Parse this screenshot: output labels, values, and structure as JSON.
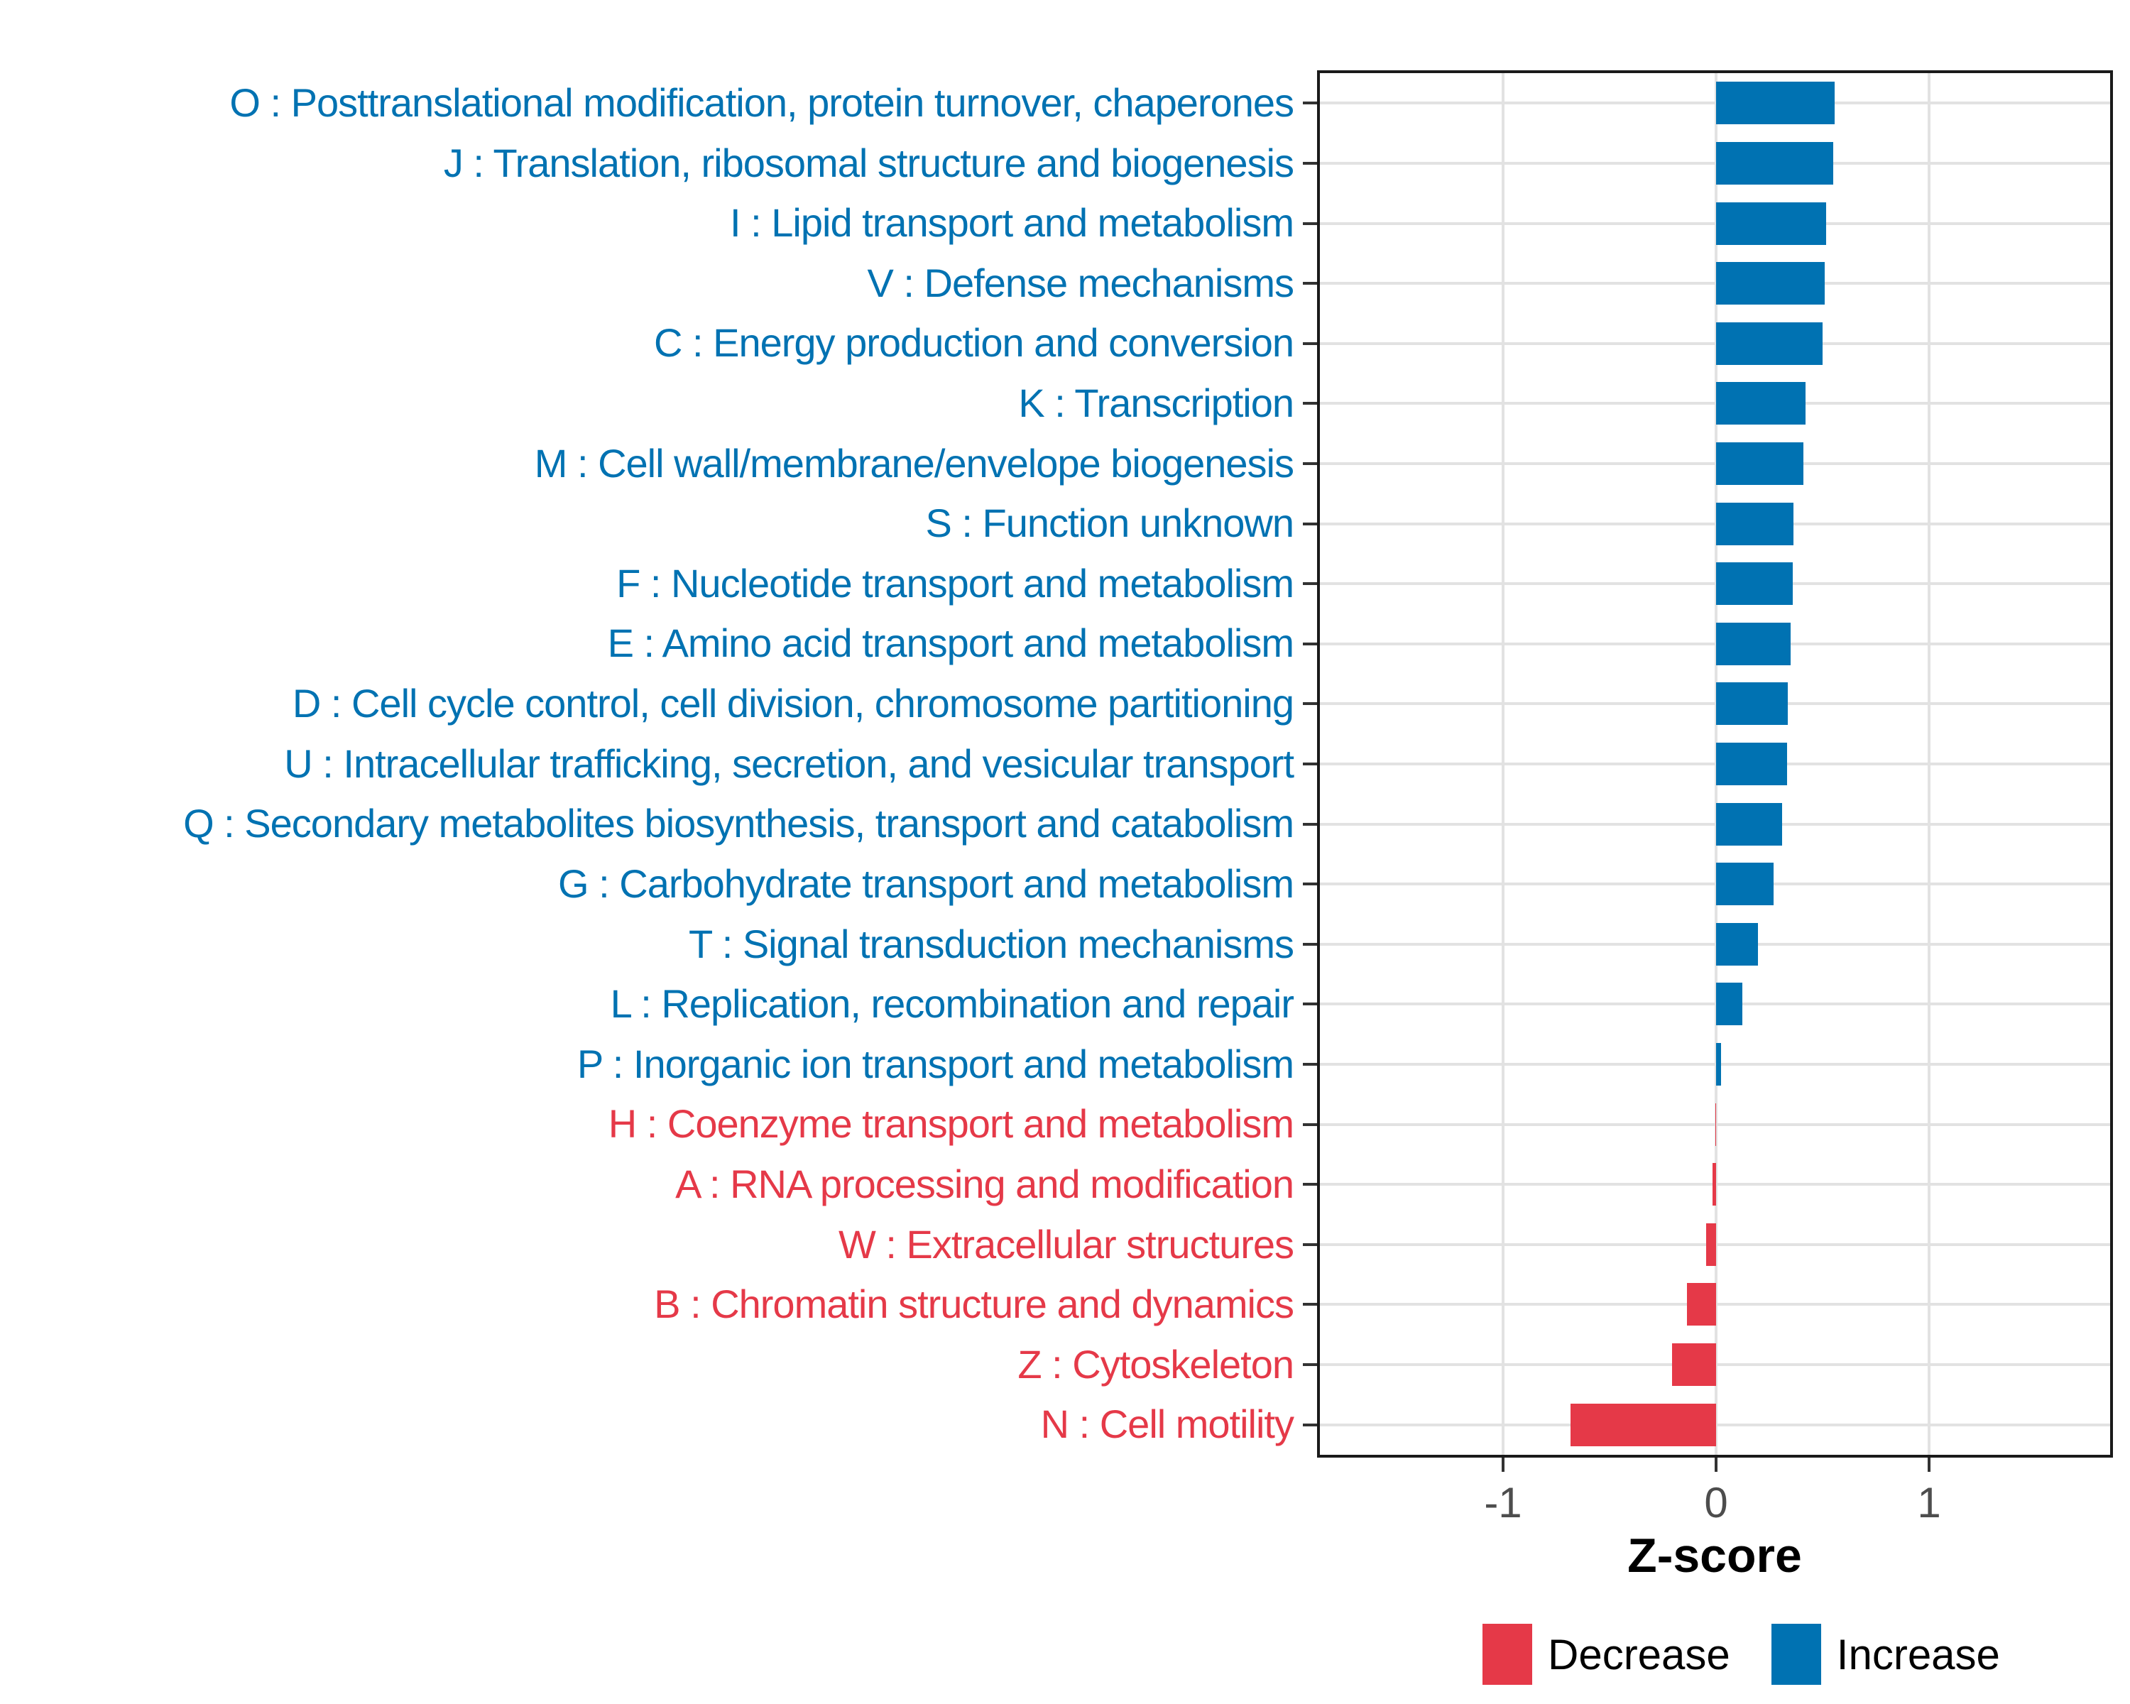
{
  "chart_data": {
    "type": "bar",
    "orientation": "horizontal-diverging",
    "title": "",
    "xlabel": "Z-score",
    "ylabel": "",
    "x_ticks": [
      -1,
      0,
      1
    ],
    "x_tick_labels": [
      "-1",
      "0",
      "1"
    ],
    "xlim": [
      -1.86,
      1.85
    ],
    "grid": "major-gridlines-on",
    "legend_position": "bottom-right",
    "legend": [
      {
        "label": "Decrease",
        "color": "#e53948"
      },
      {
        "label": "Increase",
        "color": "#0072b2"
      }
    ],
    "items": [
      {
        "code": "O",
        "label": "O : Posttranslational modification, protein turnover, chaperones",
        "value": 0.555,
        "direction": "Increase"
      },
      {
        "code": "J",
        "label": "J : Translation, ribosomal structure and biogenesis",
        "value": 0.55,
        "direction": "Increase"
      },
      {
        "code": "I",
        "label": "I : Lipid transport and metabolism",
        "value": 0.515,
        "direction": "Increase"
      },
      {
        "code": "V",
        "label": "V : Defense mechanisms",
        "value": 0.51,
        "direction": "Increase"
      },
      {
        "code": "C",
        "label": "C : Energy production and conversion",
        "value": 0.5,
        "direction": "Increase"
      },
      {
        "code": "K",
        "label": "K : Transcription",
        "value": 0.42,
        "direction": "Increase"
      },
      {
        "code": "M",
        "label": "M : Cell wall/membrane/envelope biogenesis",
        "value": 0.41,
        "direction": "Increase"
      },
      {
        "code": "S",
        "label": "S : Function unknown",
        "value": 0.363,
        "direction": "Increase"
      },
      {
        "code": "F",
        "label": "F : Nucleotide transport and metabolism",
        "value": 0.36,
        "direction": "Increase"
      },
      {
        "code": "E",
        "label": "E : Amino acid transport and metabolism",
        "value": 0.35,
        "direction": "Increase"
      },
      {
        "code": "D",
        "label": "D : Cell cycle control, cell division, chromosome partitioning",
        "value": 0.335,
        "direction": "Increase"
      },
      {
        "code": "U",
        "label": "U : Intracellular trafficking, secretion, and vesicular transport",
        "value": 0.333,
        "direction": "Increase"
      },
      {
        "code": "Q",
        "label": "Q : Secondary metabolites biosynthesis, transport and catabolism",
        "value": 0.31,
        "direction": "Increase"
      },
      {
        "code": "G",
        "label": "G : Carbohydrate transport and metabolism",
        "value": 0.27,
        "direction": "Increase"
      },
      {
        "code": "T",
        "label": "T : Signal transduction mechanisms",
        "value": 0.197,
        "direction": "Increase"
      },
      {
        "code": "L",
        "label": "L : Replication, recombination and repair",
        "value": 0.122,
        "direction": "Increase"
      },
      {
        "code": "P",
        "label": "P : Inorganic ion transport and metabolism",
        "value": 0.024,
        "direction": "Increase"
      },
      {
        "code": "H",
        "label": "H : Coenzyme transport and metabolism",
        "value": -0.004,
        "direction": "Decrease"
      },
      {
        "code": "A",
        "label": "A : RNA processing and modification",
        "value": -0.016,
        "direction": "Decrease"
      },
      {
        "code": "W",
        "label": "W : Extracellular structures",
        "value": -0.048,
        "direction": "Decrease"
      },
      {
        "code": "B",
        "label": "B : Chromatin structure and dynamics",
        "value": -0.138,
        "direction": "Decrease"
      },
      {
        "code": "Z",
        "label": "Z : Cytoskeleton",
        "value": -0.207,
        "direction": "Decrease"
      },
      {
        "code": "N",
        "label": "N : Cell motility",
        "value": -0.682,
        "direction": "Decrease"
      }
    ]
  },
  "colors": {
    "increase": "#0072b2",
    "decrease": "#e53948",
    "gridline": "#e2e2e2",
    "panel_border": "#1a1a1a",
    "tick_mark": "#333333",
    "axis_tick_text": "#4d4d4d",
    "axis_title_text": "#000000"
  }
}
